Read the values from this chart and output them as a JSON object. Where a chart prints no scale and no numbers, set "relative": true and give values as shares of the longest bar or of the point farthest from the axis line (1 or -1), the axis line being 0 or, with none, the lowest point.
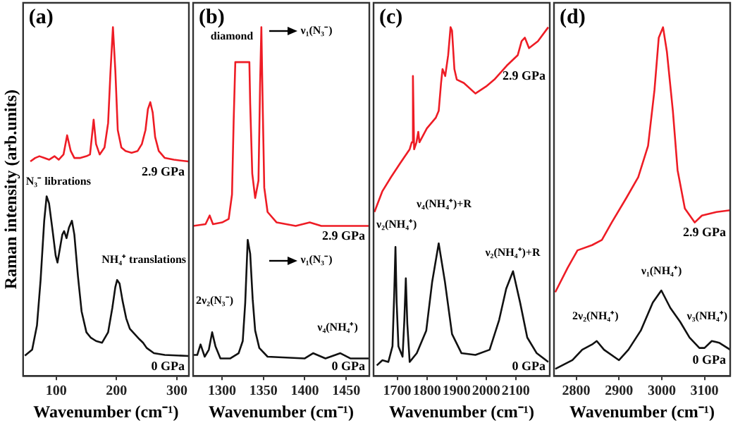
{
  "chart_data": [
    {
      "type": "line",
      "title": "(a)",
      "xlabel": "Wavenumber (cm⁻¹)",
      "ylabel": "Raman intensity (arb.units)",
      "relative": true,
      "xlim": [
        45,
        320
      ],
      "xticks": [
        100,
        200,
        300
      ],
      "annotations": [
        "N₃⁻ librations",
        "NH₄⁺ translations"
      ],
      "series": [
        {
          "name": "2.9 GPa",
          "color": "#ee1c25",
          "x": [
            57,
            65,
            72,
            80,
            88,
            97,
            104,
            112,
            118,
            124,
            130,
            140,
            150,
            156,
            162,
            166,
            172,
            180,
            186,
            190,
            194,
            198,
            202,
            208,
            215,
            225,
            235,
            242,
            248,
            252,
            256,
            260,
            264,
            270,
            280,
            295,
            319
          ],
          "values": [
            0.615,
            0.625,
            0.63,
            0.625,
            0.62,
            0.63,
            0.62,
            0.635,
            0.69,
            0.645,
            0.625,
            0.625,
            0.63,
            0.635,
            0.735,
            0.665,
            0.635,
            0.655,
            0.725,
            0.875,
            1,
            0.875,
            0.705,
            0.655,
            0.645,
            0.64,
            0.645,
            0.665,
            0.705,
            0.765,
            0.785,
            0.755,
            0.685,
            0.645,
            0.625,
            0.62,
            0.615
          ]
        },
        {
          "name": "0 GPa",
          "color": "#111111",
          "x": [
            48,
            60,
            68,
            74,
            80,
            84,
            88,
            94,
            99,
            102,
            106,
            110,
            113,
            117,
            121,
            126,
            130,
            136,
            142,
            150,
            157,
            166,
            176,
            186,
            193,
            198,
            201,
            205,
            210,
            216,
            222,
            230,
            238,
            244,
            250,
            262,
            280,
            319
          ],
          "values": [
            0.058,
            0.075,
            0.145,
            0.275,
            0.445,
            0.515,
            0.495,
            0.415,
            0.345,
            0.325,
            0.365,
            0.405,
            0.415,
            0.395,
            0.425,
            0.445,
            0.405,
            0.285,
            0.185,
            0.125,
            0.11,
            0.1,
            0.095,
            0.125,
            0.195,
            0.255,
            0.275,
            0.265,
            0.215,
            0.165,
            0.135,
            0.12,
            0.105,
            0.095,
            0.08,
            0.065,
            0.06,
            0.057
          ]
        }
      ]
    },
    {
      "type": "line",
      "title": "(b)",
      "xlabel": "Wavenumber (cm⁻¹)",
      "relative": true,
      "xlim": [
        1265,
        1478
      ],
      "xticks": [
        1300,
        1350,
        1400,
        1450
      ],
      "annotations": [
        "diamond",
        "ν₁(N₃⁻)",
        "ν₁(N₃⁻)",
        "2ν₂(N₃⁻)",
        "ν₄(NH₄⁺)"
      ],
      "series": [
        {
          "name": "2.9 GPa",
          "color": "#ee1c25",
          "x": [
            1265,
            1280,
            1285,
            1289,
            1300,
            1308,
            1312,
            1314,
            1316,
            1333,
            1334,
            1336.5,
            1340,
            1344,
            1346,
            1347.5,
            1349,
            1351,
            1355,
            1366,
            1389,
            1406,
            1420,
            1478
          ],
          "values": [
            0.43,
            0.435,
            0.46,
            0.435,
            0.44,
            0.45,
            0.52,
            0.73,
            0.9,
            0.9,
            0.78,
            0.58,
            0.51,
            0.56,
            0.84,
            1,
            0.79,
            0.54,
            0.47,
            0.44,
            0.43,
            0.44,
            0.43,
            0.43
          ]
        },
        {
          "name": "0 GPa",
          "color": "#111111",
          "x": [
            1265,
            1270,
            1274,
            1279,
            1284,
            1288,
            1292,
            1298,
            1310,
            1320,
            1325,
            1328,
            1331,
            1334,
            1337,
            1340,
            1345,
            1355,
            1400,
            1410,
            1425,
            1443,
            1455,
            1478
          ],
          "values": [
            0.06,
            0.06,
            0.09,
            0.055,
            0.075,
            0.125,
            0.085,
            0.05,
            0.05,
            0.065,
            0.1,
            0.21,
            0.39,
            0.35,
            0.22,
            0.13,
            0.08,
            0.055,
            0.05,
            0.065,
            0.05,
            0.065,
            0.05,
            0.05
          ]
        }
      ]
    },
    {
      "type": "line",
      "title": "(c)",
      "xlabel": "Wavenumber (cm⁻¹)",
      "relative": true,
      "xlim": [
        1620,
        2215
      ],
      "xticks": [
        1700,
        1800,
        1900,
        2000,
        2100
      ],
      "annotations": [
        "ν₂(NH₄⁺)",
        "ν₄(NH₄⁺)+R",
        "ν₂(NH₄⁺)+R"
      ],
      "series": [
        {
          "name": "2.9 GPa",
          "color": "#ee1c25",
          "x": [
            1623,
            1650,
            1679,
            1710,
            1742,
            1749,
            1753,
            1757,
            1765,
            1771,
            1775,
            1800,
            1830,
            1840,
            1848,
            1853,
            1862,
            1872,
            1880,
            1885,
            1893,
            1901,
            1925,
            1964,
            2000,
            2028,
            2070,
            2107,
            2120,
            2131,
            2145,
            2175,
            2210
          ],
          "values": [
            0.47,
            0.53,
            0.57,
            0.61,
            0.65,
            0.67,
            0.86,
            0.65,
            0.67,
            0.7,
            0.67,
            0.71,
            0.74,
            0.76,
            0.84,
            0.88,
            0.86,
            0.92,
            1,
            0.99,
            0.88,
            0.85,
            0.84,
            0.81,
            0.83,
            0.85,
            0.89,
            0.92,
            0.96,
            0.97,
            0.94,
            0.96,
            1
          ]
        },
        {
          "name": "0 GPa",
          "color": "#111111",
          "x": [
            1631,
            1650,
            1670,
            1684,
            1690,
            1694,
            1698,
            1704,
            1718,
            1724,
            1729,
            1734,
            1742,
            1766,
            1798,
            1818,
            1840,
            1861,
            1885,
            1917,
            1964,
            2012,
            2044,
            2068,
            2091,
            2115,
            2139,
            2171,
            2210
          ],
          "values": [
            0.03,
            0.045,
            0.04,
            0.085,
            0.24,
            0.37,
            0.21,
            0.085,
            0.055,
            0.16,
            0.28,
            0.15,
            0.04,
            0.065,
            0.13,
            0.27,
            0.38,
            0.27,
            0.12,
            0.065,
            0.06,
            0.075,
            0.16,
            0.25,
            0.3,
            0.21,
            0.11,
            0.065,
            0.04
          ]
        }
      ]
    },
    {
      "type": "line",
      "title": "(d)",
      "xlabel": "Wavenumber (cm⁻¹)",
      "relative": true,
      "xlim": [
        2748,
        3160
      ],
      "xticks": [
        2800,
        2900,
        3000,
        3100
      ],
      "annotations": [
        "2ν₂(NH₄⁺)",
        "ν₁(NH₄⁺)",
        "ν₃(NH₄⁺)"
      ],
      "series": [
        {
          "name": "2.9 GPa",
          "color": "#ee1c25",
          "x": [
            2751,
            2780,
            2803,
            2837,
            2860,
            2883,
            2917,
            2945,
            2968,
            2983,
            2993,
            3003,
            3012,
            3026,
            3037,
            3054,
            3077,
            3094,
            3128,
            3160
          ],
          "values": [
            0.24,
            0.31,
            0.36,
            0.375,
            0.39,
            0.44,
            0.51,
            0.57,
            0.66,
            0.82,
            0.97,
            1,
            0.93,
            0.76,
            0.59,
            0.48,
            0.44,
            0.46,
            0.47,
            0.475
          ]
        },
        {
          "name": "0 GPa",
          "color": "#111111",
          "x": [
            2751,
            2791,
            2814,
            2837,
            2848,
            2865,
            2900,
            2922,
            2951,
            2979,
            2999,
            3020,
            3043,
            3065,
            3088,
            3100,
            3117,
            3134,
            3160
          ],
          "values": [
            0.02,
            0.045,
            0.075,
            0.09,
            0.1,
            0.075,
            0.045,
            0.075,
            0.13,
            0.21,
            0.245,
            0.195,
            0.155,
            0.11,
            0.08,
            0.08,
            0.1,
            0.095,
            0.075
          ]
        }
      ]
    }
  ]
}
